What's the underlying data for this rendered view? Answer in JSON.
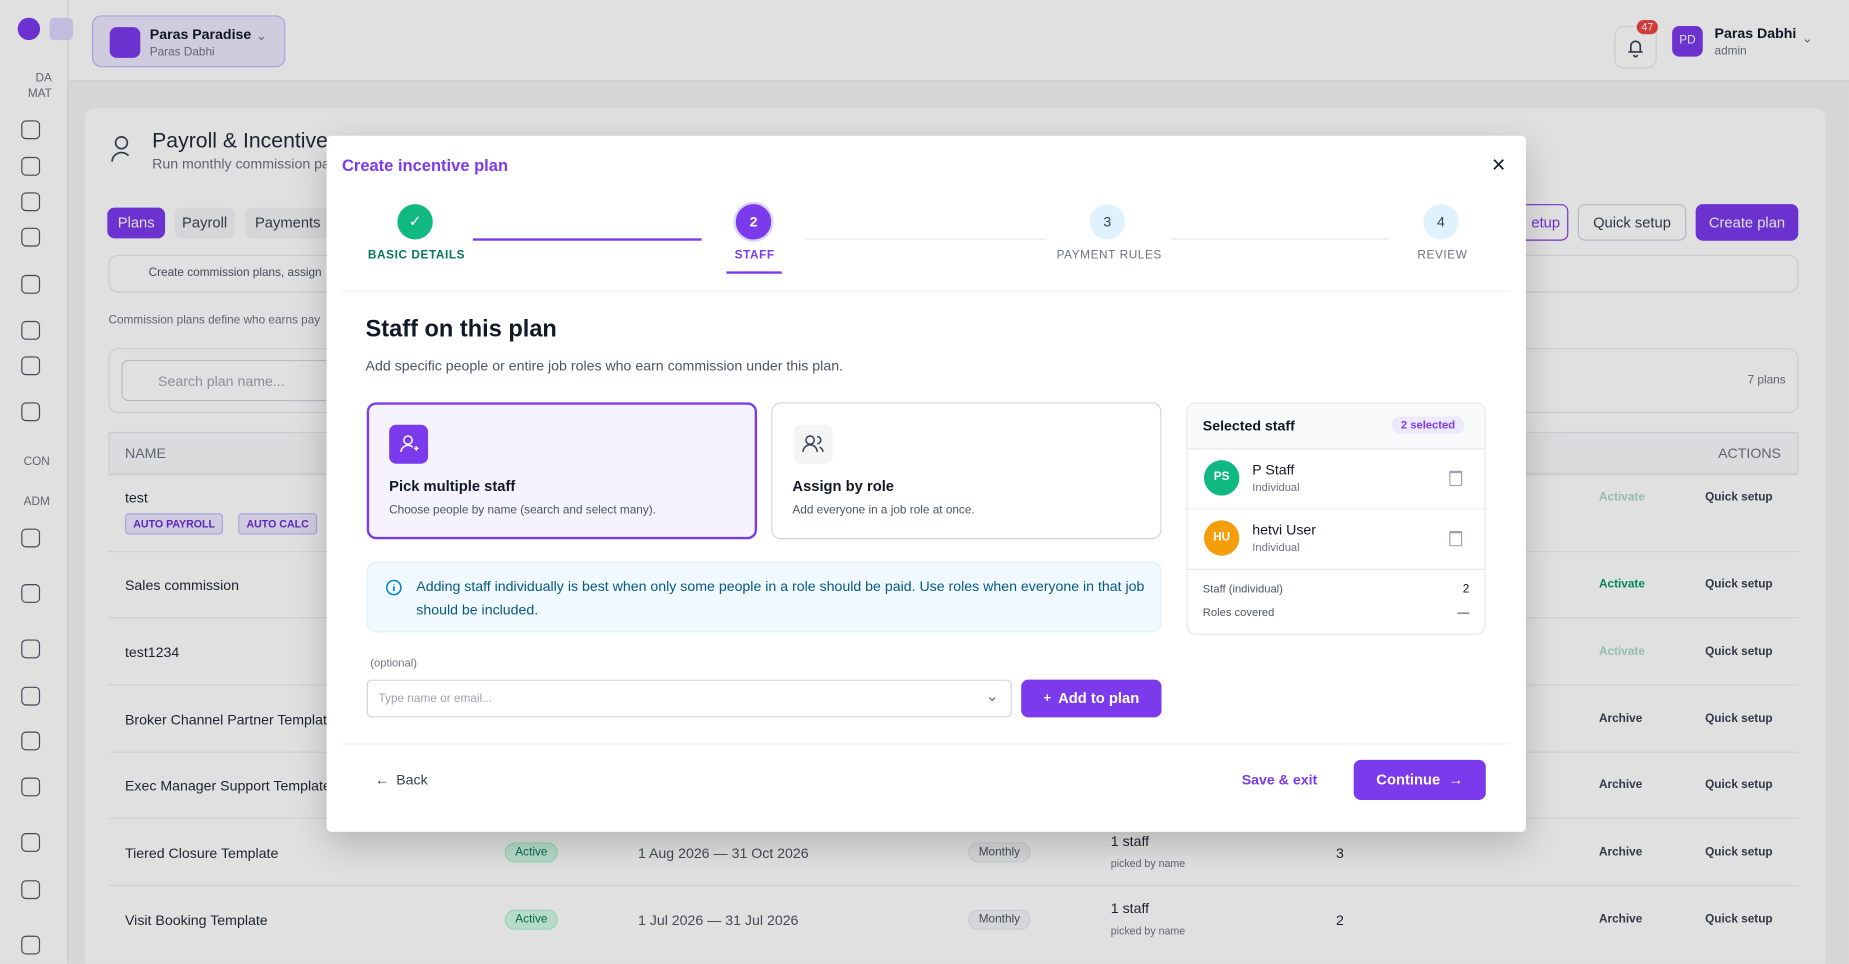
{
  "topbar": {
    "org_name": "Paras Paradise",
    "org_owner": "Paras Dabhi",
    "notifications": "47",
    "avatar": "PD",
    "user_name": "Paras Dabhi",
    "user_role": "admin"
  },
  "sidebar": {
    "sections": [
      "DA MAT",
      "CON",
      "ADM"
    ]
  },
  "page": {
    "title": "Payroll & Incentives",
    "subtitle": "Run monthly commission pa",
    "tabs": [
      "Plans",
      "Payroll",
      "Payments"
    ],
    "buttons": [
      "etup",
      "Quick setup",
      "Create plan"
    ],
    "hint": "Create commission plans, assign",
    "description": "Commission plans define who earns pay",
    "search_placeholder": "Search plan name...",
    "count": "7 plans",
    "columns": [
      "NAME",
      "ACTIONS"
    ],
    "rows": [
      {
        "name": "test",
        "badges": [
          "AUTO PAYROLL",
          "AUTO CALC"
        ],
        "actions": [
          "Activate",
          "Quick setup"
        ]
      },
      {
        "name": "Sales commission",
        "actions": [
          "Activate",
          "Quick setup"
        ]
      },
      {
        "name": "test1234",
        "actions": [
          "Activate",
          "Quick setup"
        ]
      },
      {
        "name": "Broker Channel Partner Template",
        "actions": [
          "Archive",
          "Quick setup"
        ]
      },
      {
        "name": "Exec Manager Support Template",
        "actions": [
          "Archive",
          "Quick setup"
        ]
      },
      {
        "name": "Tiered Closure Template",
        "status": "Active",
        "dates": "1 Aug 2026 — 31 Oct 2026",
        "frequency": "Monthly",
        "staff": "1 staff",
        "staff_note": "picked by name",
        "count": "3",
        "actions": [
          "Archive",
          "Quick setup"
        ]
      },
      {
        "name": "Visit Booking Template",
        "status": "Active",
        "dates": "1 Jul 2026 — 31 Jul 2026",
        "frequency": "Monthly",
        "staff": "1 staff",
        "staff_note": "picked by name",
        "count": "2",
        "actions": [
          "Archive",
          "Quick setup"
        ]
      }
    ]
  },
  "modal": {
    "title": "Create incentive plan",
    "steps": [
      {
        "label": "BASIC DETAILS"
      },
      {
        "number": "2",
        "label": "STAFF"
      },
      {
        "number": "3",
        "label": "PAYMENT RULES"
      },
      {
        "number": "4",
        "label": "REVIEW"
      }
    ],
    "heading": "Staff on this plan",
    "subheading": "Add specific people or entire job roles who earn commission under this plan.",
    "options": [
      {
        "title": "Pick multiple staff",
        "description": "Choose people by name (search and select many)."
      },
      {
        "title": "Assign by role",
        "description": "Add everyone in a job role at once."
      }
    ],
    "info": "Adding staff individually is best when only some people in a role should be paid. Use roles when everyone in that job should be included.",
    "optional": "(optional)",
    "input_placeholder": "Type name or email...",
    "add_button": "Add to plan",
    "selected": {
      "title": "Selected staff",
      "badge": "2 selected",
      "people": [
        {
          "initials": "PS",
          "name": "P Staff",
          "type": "Individual",
          "color": "#10b981"
        },
        {
          "initials": "HU",
          "name": "hetvi User",
          "type": "Individual",
          "color": "#f59e0b"
        }
      ],
      "summary": [
        {
          "label": "Staff (individual)",
          "value": "2"
        },
        {
          "label": "Roles covered",
          "value": "—"
        }
      ]
    },
    "back": "Back",
    "save_exit": "Save & exit",
    "continue": "Continue"
  }
}
